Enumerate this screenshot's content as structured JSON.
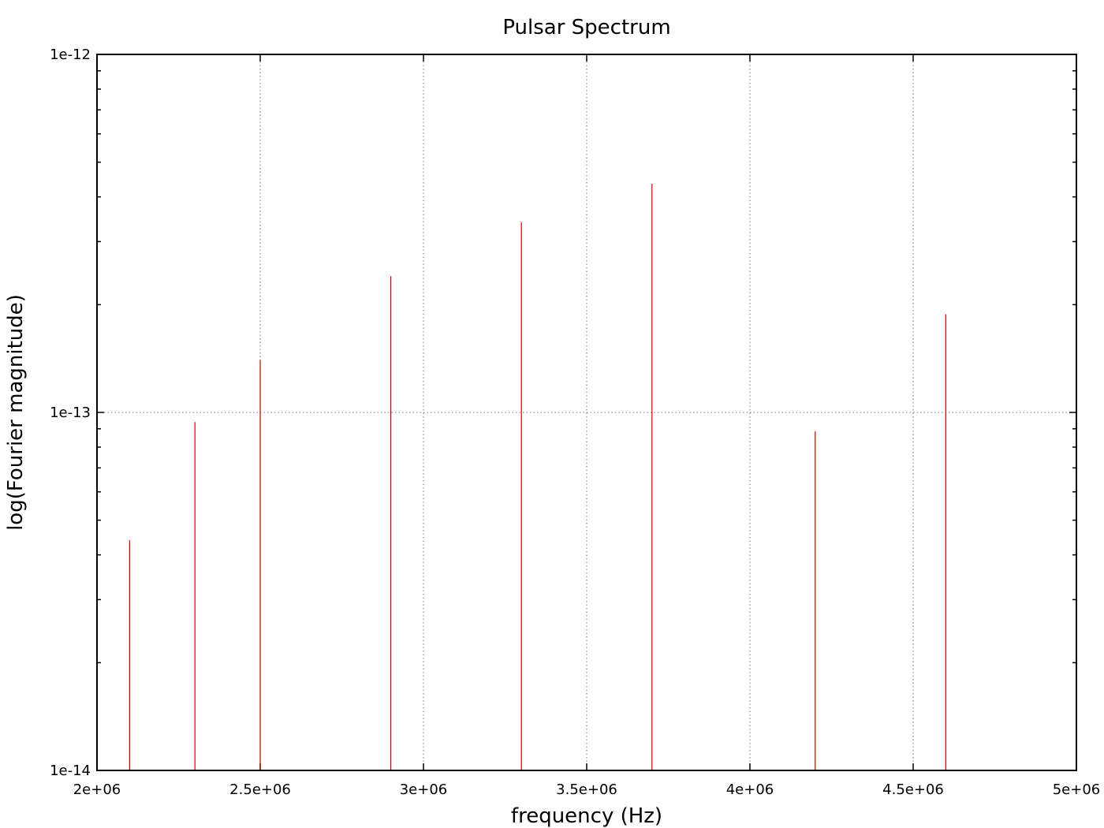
{
  "chart_data": {
    "type": "bar",
    "title": "Pulsar Spectrum",
    "xlabel": "frequency (Hz)",
    "ylabel": "log(Fourier magnitude)",
    "xlim": [
      2000000,
      5000000
    ],
    "ylim": [
      1e-14,
      1e-12
    ],
    "yscale": "log",
    "grid": true,
    "x_ticks": [
      {
        "value": 2000000,
        "label": "2e+06"
      },
      {
        "value": 2500000,
        "label": "2.5e+06"
      },
      {
        "value": 3000000,
        "label": "3e+06"
      },
      {
        "value": 3500000,
        "label": "3.5e+06"
      },
      {
        "value": 4000000,
        "label": "4e+06"
      },
      {
        "value": 4500000,
        "label": "4.5e+06"
      },
      {
        "value": 5000000,
        "label": "5e+06"
      }
    ],
    "y_ticks": [
      {
        "value": 1e-14,
        "label": "1e-14"
      },
      {
        "value": 1e-13,
        "label": "1e-13"
      },
      {
        "value": 1e-12,
        "label": "1e-12"
      }
    ],
    "line_color": "#cc0000",
    "points": [
      {
        "x": 2100000,
        "y": 4.4e-14
      },
      {
        "x": 2300000,
        "y": 9.4e-14
      },
      {
        "x": 2500000,
        "y": 1.4e-13
      },
      {
        "x": 2900000,
        "y": 2.4e-13
      },
      {
        "x": 3300000,
        "y": 3.4e-13
      },
      {
        "x": 3700000,
        "y": 4.35e-13
      },
      {
        "x": 4200000,
        "y": 8.85e-14
      },
      {
        "x": 4600000,
        "y": 1.88e-13
      }
    ]
  }
}
